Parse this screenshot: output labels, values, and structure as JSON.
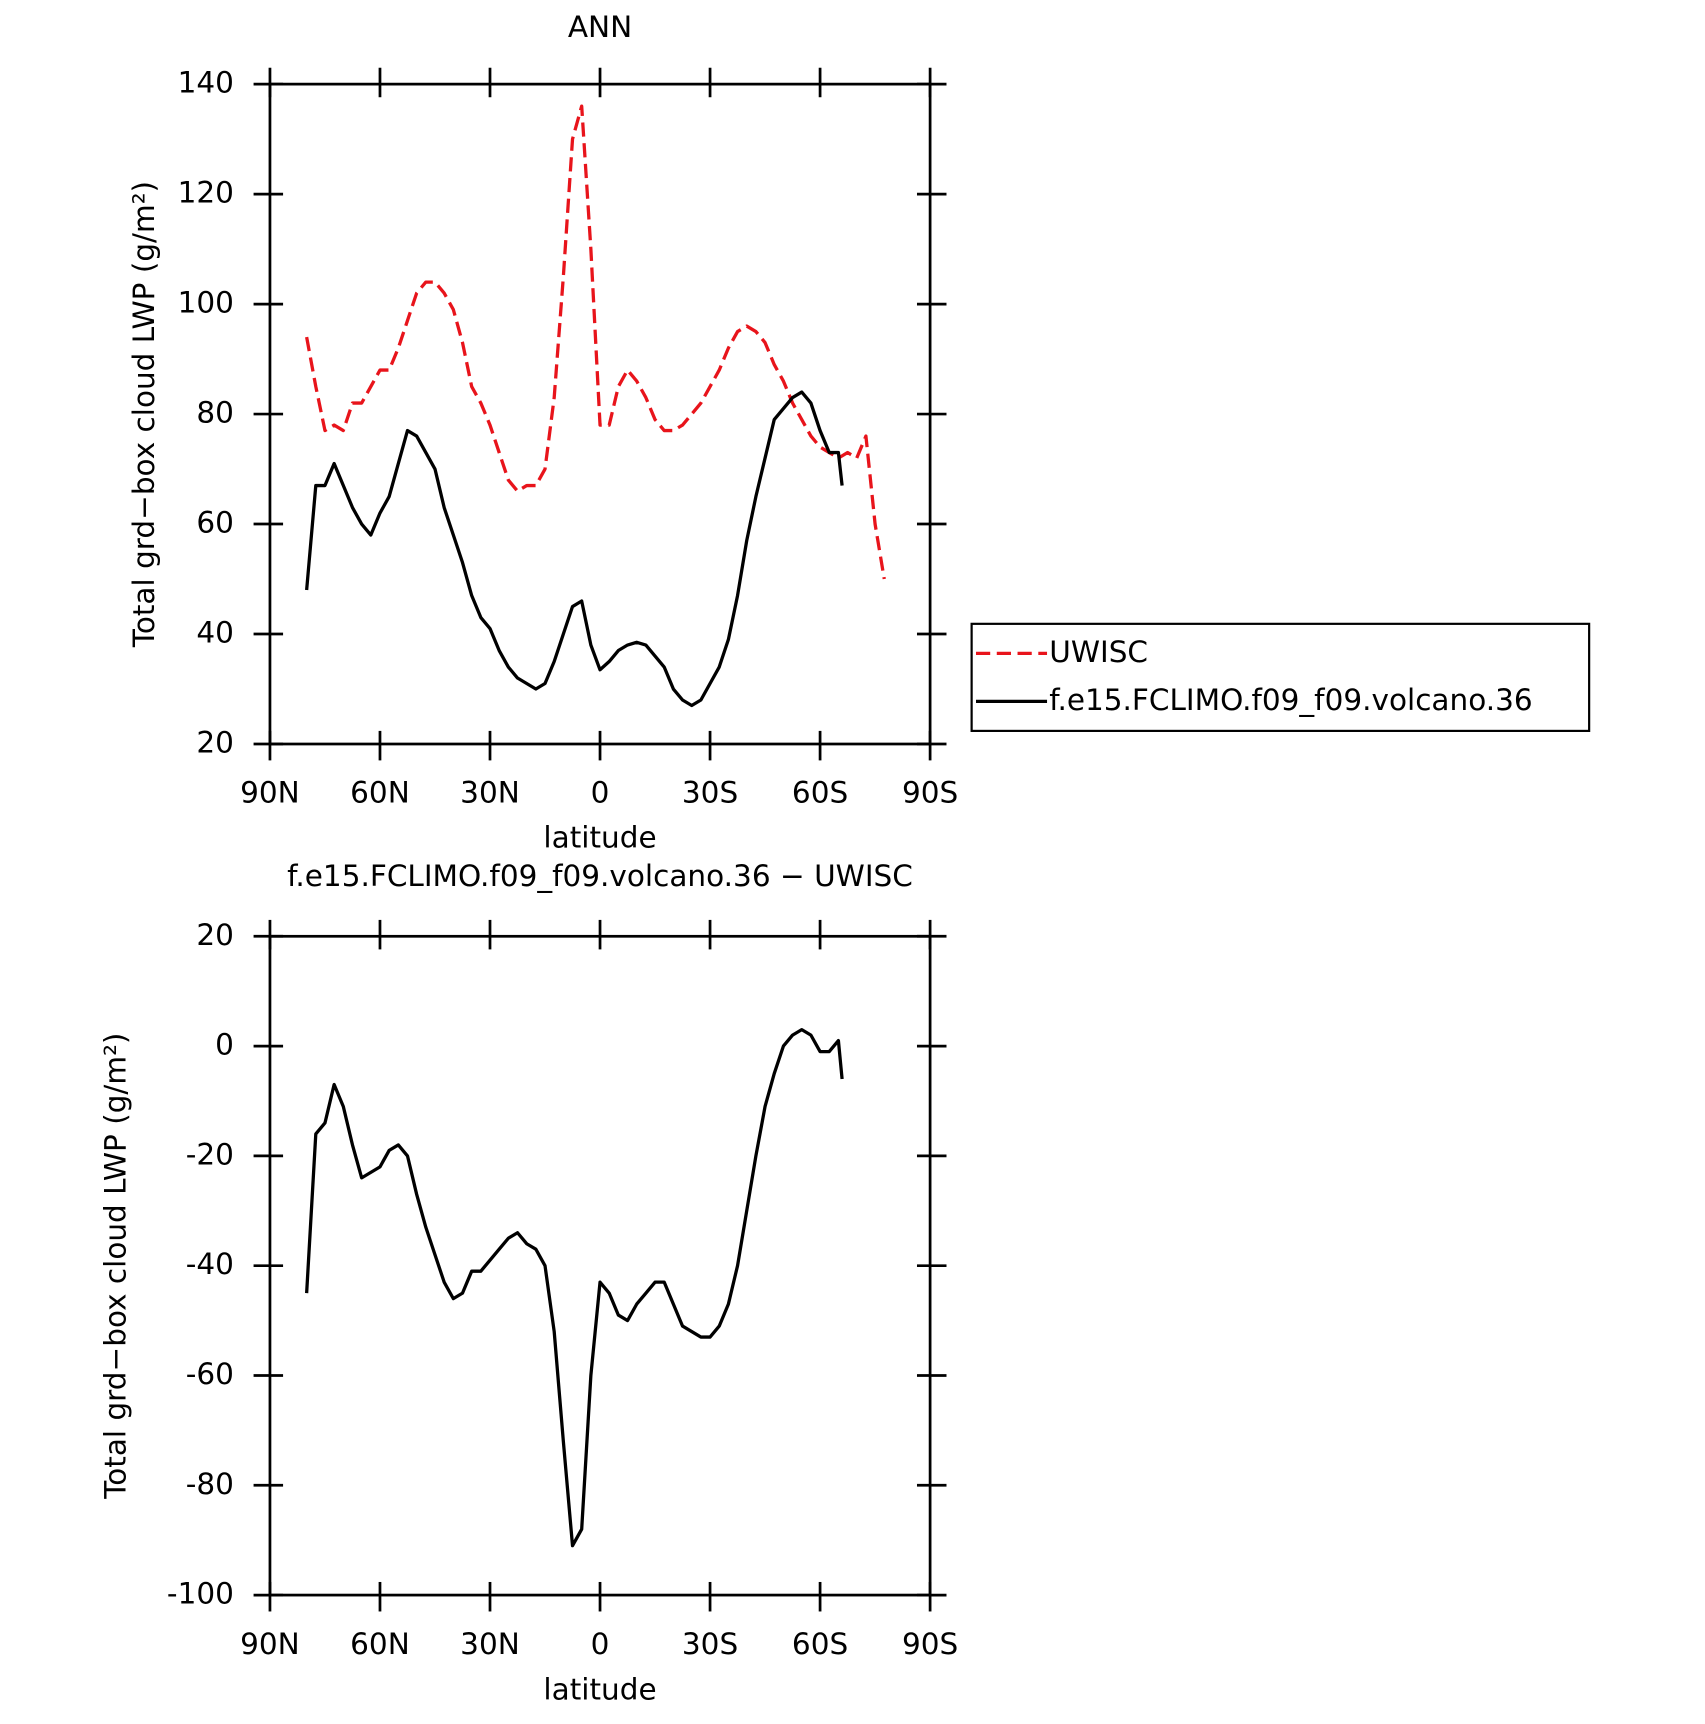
{
  "chart_data": [
    {
      "type": "line",
      "title": "ANN",
      "xlabel": "latitude",
      "ylabel": "Total grd−box cloud LWP (g/m²)",
      "xlim": [
        90,
        -90
      ],
      "xticks": [
        {
          "value": 90,
          "label": "90N"
        },
        {
          "value": 60,
          "label": "60N"
        },
        {
          "value": 30,
          "label": "30N"
        },
        0,
        {
          "value": -30,
          "label": "30S"
        },
        {
          "value": -60,
          "label": "60S"
        },
        {
          "value": -90,
          "label": "90S"
        }
      ],
      "ylim": [
        20,
        140
      ],
      "yticks": [
        20,
        40,
        60,
        80,
        100,
        120,
        140
      ],
      "legend": "outside-right",
      "series": [
        {
          "name": "UWISC",
          "color": "#e8141b",
          "dashed": true,
          "x": [
            80,
            77.5,
            75,
            72.5,
            70,
            67.5,
            65,
            62.5,
            60,
            57.5,
            55,
            52.5,
            50,
            47.5,
            45,
            42.5,
            40,
            37.5,
            35,
            32.5,
            30,
            27.5,
            25,
            22.5,
            20,
            17.5,
            15,
            12.5,
            10,
            7.5,
            5,
            2.5,
            0,
            -2.5,
            -5,
            -7.5,
            -10,
            -12.5,
            -15,
            -17.5,
            -20,
            -22.5,
            -25,
            -27.5,
            -30,
            -32.5,
            -35,
            -37.5,
            -40,
            -42.5,
            -45,
            -47.5,
            -50,
            -52.5,
            -55,
            -57.5,
            -60,
            -62.5,
            -65,
            -67.5,
            -70,
            -72.5,
            -75,
            -77.5
          ],
          "values": [
            94,
            85,
            77,
            78,
            77,
            82,
            82,
            85,
            88,
            88,
            92,
            97,
            102,
            104,
            104,
            102,
            99,
            93,
            85,
            82,
            78,
            73,
            68,
            66,
            67,
            67,
            70,
            83,
            105,
            130,
            136,
            110,
            78,
            78,
            85,
            88,
            86,
            83,
            79,
            77,
            77,
            78,
            80,
            82,
            85,
            88,
            92,
            95,
            96,
            95,
            93,
            89,
            86,
            82,
            79,
            76,
            74,
            73,
            72,
            73,
            72,
            76,
            60,
            50
          ]
        },
        {
          "name": "f.e15.FCLIMO.f09_f09.volcano.36",
          "color": "#000000",
          "dashed": false,
          "x": [
            80,
            77.5,
            75,
            72.5,
            70,
            67.5,
            65,
            62.5,
            60,
            57.5,
            55,
            52.5,
            50,
            47.5,
            45,
            42.5,
            40,
            37.5,
            35,
            32.5,
            30,
            27.5,
            25,
            22.5,
            20,
            17.5,
            15,
            12.5,
            10,
            7.5,
            5,
            2.5,
            0,
            -2.5,
            -5,
            -7.5,
            -10,
            -12.5,
            -15,
            -17.5,
            -20,
            -22.5,
            -25,
            -27.5,
            -30,
            -32.5,
            -35,
            -37.5,
            -40,
            -42.5,
            -45,
            -47.5,
            -50,
            -52.5,
            -55,
            -57.5,
            -60,
            -62.5,
            -65,
            -66
          ],
          "values": [
            48,
            67,
            67,
            71,
            67,
            63,
            60,
            58,
            62,
            65,
            71,
            77,
            76,
            73,
            70,
            63,
            58,
            53,
            47,
            43,
            41,
            37,
            34,
            32,
            31,
            30,
            31,
            35,
            40,
            45,
            46,
            38,
            33.5,
            35,
            37,
            38,
            38.5,
            38,
            36,
            34,
            30,
            28,
            27,
            28,
            31,
            34,
            39,
            47,
            57,
            65,
            72,
            79,
            81,
            83,
            84,
            82,
            77,
            73,
            73,
            67
          ]
        }
      ]
    },
    {
      "type": "line",
      "title": "f.e15.FCLIMO.f09_f09.volcano.36 − UWISC",
      "xlabel": "latitude",
      "ylabel": "Total grd−box cloud LWP (g/m²)",
      "xlim": [
        90,
        -90
      ],
      "xticks": [
        {
          "value": 90,
          "label": "90N"
        },
        {
          "value": 60,
          "label": "60N"
        },
        {
          "value": 30,
          "label": "30N"
        },
        0,
        {
          "value": -30,
          "label": "30S"
        },
        {
          "value": -60,
          "label": "60S"
        },
        {
          "value": -90,
          "label": "90S"
        }
      ],
      "ylim": [
        -100,
        20
      ],
      "yticks": [
        -100,
        -80,
        -60,
        -40,
        -20,
        0,
        20
      ],
      "series": [
        {
          "color": "#000000",
          "dashed": false,
          "x": [
            80,
            77.5,
            75,
            72.5,
            70,
            67.5,
            65,
            62.5,
            60,
            57.5,
            55,
            52.5,
            50,
            47.5,
            45,
            42.5,
            40,
            37.5,
            35,
            32.5,
            30,
            27.5,
            25,
            22.5,
            20,
            17.5,
            15,
            12.5,
            10,
            7.5,
            5,
            2.5,
            0,
            -2.5,
            -5,
            -7.5,
            -10,
            -12.5,
            -15,
            -17.5,
            -20,
            -22.5,
            -25,
            -27.5,
            -30,
            -32.5,
            -35,
            -37.5,
            -40,
            -42.5,
            -45,
            -47.5,
            -50,
            -52.5,
            -55,
            -57.5,
            -60,
            -62.5,
            -65,
            -66
          ],
          "values": [
            -45,
            -16,
            -14,
            -7,
            -11,
            -18,
            -24,
            -23,
            -22,
            -19,
            -18,
            -20,
            -27,
            -33,
            -38,
            -43,
            -46,
            -45,
            -41,
            -41,
            -39,
            -37,
            -35,
            -34,
            -36,
            -37,
            -40,
            -52,
            -72,
            -91,
            -88,
            -60,
            -43,
            -45,
            -49,
            -50,
            -47,
            -45,
            -43,
            -43,
            -47,
            -51,
            -52,
            -53,
            -53,
            -51,
            -47,
            -40,
            -30,
            -20,
            -11,
            -5,
            0,
            2,
            3,
            2,
            -1,
            -1,
            1,
            -6
          ]
        }
      ]
    }
  ]
}
